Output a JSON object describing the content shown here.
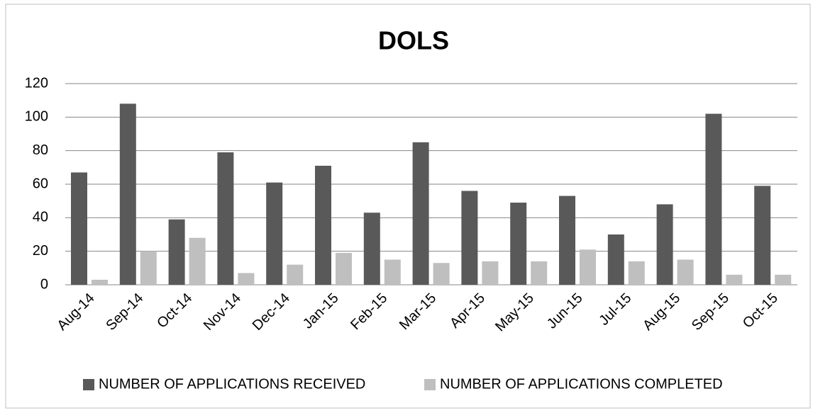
{
  "chart_data": {
    "type": "bar",
    "title": "DOLS",
    "categories": [
      "Aug-14",
      "Sep-14",
      "Oct-14",
      "Nov-14",
      "Dec-14",
      "Jan-15",
      "Feb-15",
      "Mar-15",
      "Apr-15",
      "May-15",
      "Jun-15",
      "Jul-15",
      "Aug-15",
      "Sep-15",
      "Oct-15"
    ],
    "series": [
      {
        "name": "NUMBER OF APPLICATIONS RECEIVED",
        "color": "#595959",
        "values": [
          67,
          108,
          39,
          79,
          61,
          71,
          43,
          85,
          56,
          49,
          53,
          30,
          48,
          102,
          59
        ]
      },
      {
        "name": "NUMBER OF APPLICATIONS COMPLETED",
        "color": "#bfbfbf",
        "values": [
          3,
          20,
          28,
          7,
          12,
          19,
          15,
          13,
          14,
          14,
          21,
          14,
          15,
          6,
          6
        ]
      }
    ],
    "ylim": [
      0,
      120
    ],
    "yticks": [
      0,
      20,
      40,
      60,
      80,
      100,
      120
    ],
    "grid": true,
    "legend": "bottom"
  }
}
